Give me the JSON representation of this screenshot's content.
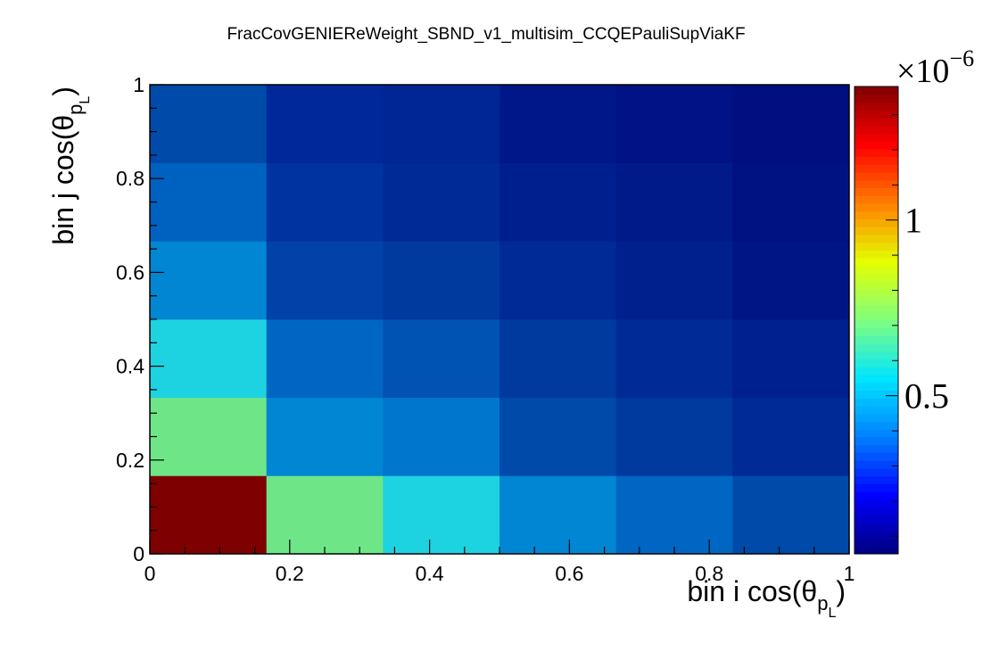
{
  "chart_data": {
    "type": "heatmap",
    "title": "FracCovGENIEReWeight_SBND_v1_multisim_CCQEPauliSupViaKF",
    "xlabel": {
      "prefix": "bin i cos(θ",
      "sub": "p",
      "subsub": "L",
      "suffix": ")"
    },
    "ylabel": {
      "prefix": "bin j cos(θ",
      "sub": "p",
      "subsub": "L",
      "suffix": ")"
    },
    "xlim": [
      0,
      1
    ],
    "ylim": [
      0,
      1
    ],
    "x_ticks": [
      {
        "value": 0,
        "label": "0"
      },
      {
        "value": 0.2,
        "label": "0.2"
      },
      {
        "value": 0.4,
        "label": "0.4"
      },
      {
        "value": 0.6,
        "label": "0.6"
      },
      {
        "value": 0.8,
        "label": "0.8"
      },
      {
        "value": 1,
        "label": "1"
      }
    ],
    "y_ticks": [
      {
        "value": 0,
        "label": "0"
      },
      {
        "value": 0.2,
        "label": "0.2"
      },
      {
        "value": 0.4,
        "label": "0.4"
      },
      {
        "value": 0.6,
        "label": "0.6"
      },
      {
        "value": 0.8,
        "label": "0.8"
      },
      {
        "value": 1,
        "label": "1"
      }
    ],
    "x_bins": [
      0,
      0.1667,
      0.3333,
      0.5,
      0.6667,
      0.8333,
      1
    ],
    "y_bins": [
      0,
      0.1667,
      0.3333,
      0.5,
      0.6667,
      0.8333,
      1
    ],
    "values_unit_exponent": -6,
    "colorbar": {
      "min": 0.05,
      "max": 1.38,
      "ticks": [
        {
          "value": 0.5,
          "label": "0.5"
        },
        {
          "value": 1.0,
          "label": "1"
        }
      ],
      "multiplier_base": "×10",
      "multiplier_exp": "−6",
      "palette": [
        "#00007f",
        "#0000ff",
        "#007fff",
        "#00e5ff",
        "#7fff7f",
        "#e5ff00",
        "#ff7f00",
        "#ff0000",
        "#7f0000"
      ]
    },
    "z": [
      [
        1.38,
        0.68,
        0.5,
        0.33,
        0.26,
        0.18
      ],
      [
        0.68,
        0.33,
        0.28,
        0.18,
        0.15,
        0.12
      ],
      [
        0.5,
        0.26,
        0.21,
        0.15,
        0.12,
        0.1
      ],
      [
        0.32,
        0.18,
        0.14,
        0.1,
        0.08,
        0.06
      ],
      [
        0.26,
        0.15,
        0.12,
        0.09,
        0.07,
        0.06
      ],
      [
        0.2,
        0.12,
        0.1,
        0.07,
        0.06,
        0.05
      ]
    ],
    "z_colors": [
      [
        "#7f0000",
        "#6ee688",
        "#1dd3e1",
        "#0086d2",
        "#0066c3",
        "#004aaa"
      ],
      [
        "#6ee688",
        "#0086d2",
        "#0076cc",
        "#004aaa",
        "#003a9e",
        "#002a95"
      ],
      [
        "#1dd3e1",
        "#0066c3",
        "#0053b3",
        "#003a9e",
        "#002a95",
        "#002090"
      ],
      [
        "#0086d2",
        "#0042a8",
        "#003a9e",
        "#002a95",
        "#00208d",
        "#001585"
      ],
      [
        "#0062c0",
        "#0033a0",
        "#002a95",
        "#001f8f",
        "#001a8a",
        "#001282"
      ],
      [
        "#004aaa",
        "#00289a",
        "#002595",
        "#00178a",
        "#001285",
        "#000e80"
      ]
    ]
  }
}
